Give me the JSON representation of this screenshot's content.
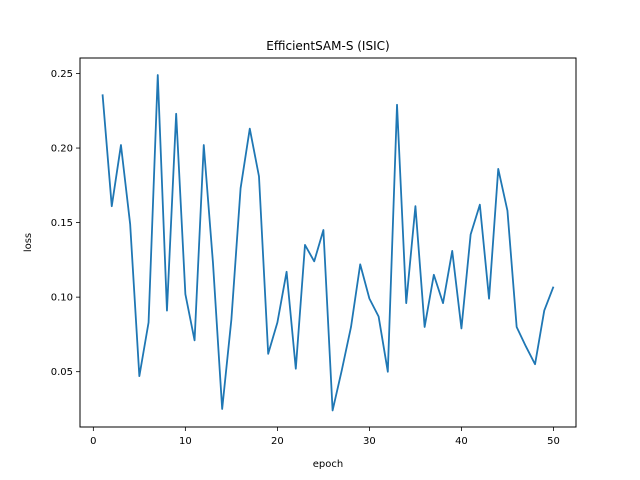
{
  "chart_data": {
    "type": "line",
    "title": "EfficientSAM-S (ISIC)",
    "xlabel": "epoch",
    "ylabel": "loss",
    "xlim": [
      -1.45,
      52.45
    ],
    "ylim": [
      0.0129,
      0.2604
    ],
    "xticks": [
      0,
      10,
      20,
      30,
      40,
      50
    ],
    "yticks": [
      0.05,
      0.1,
      0.15,
      0.2,
      0.25
    ],
    "ytick_labels": [
      "0.05",
      "0.10",
      "0.15",
      "0.20",
      "0.25"
    ],
    "grid": false,
    "line_color": "#1f77b4",
    "series": [
      {
        "x": [
          1,
          2,
          3,
          4,
          5,
          6,
          7,
          8,
          9,
          10,
          11,
          12,
          13,
          14,
          15,
          16,
          17,
          18,
          19,
          20,
          21,
          22,
          23,
          24,
          25,
          26,
          27,
          28,
          29,
          30,
          31,
          32,
          33,
          34,
          35,
          36,
          37,
          38,
          39,
          40,
          41,
          42,
          43,
          44,
          45,
          46,
          47,
          48,
          49,
          50
        ],
        "values": [
          0.236,
          0.161,
          0.202,
          0.149,
          0.047,
          0.083,
          0.249,
          0.091,
          0.223,
          0.102,
          0.071,
          0.202,
          0.123,
          0.025,
          0.085,
          0.173,
          0.213,
          0.181,
          0.062,
          0.083,
          0.117,
          0.052,
          0.135,
          0.124,
          0.145,
          0.024,
          0.051,
          0.08,
          0.122,
          0.099,
          0.087,
          0.05,
          0.229,
          0.096,
          0.161,
          0.08,
          0.115,
          0.096,
          0.131,
          0.079,
          0.142,
          0.162,
          0.099,
          0.186,
          0.158,
          0.08,
          0.067,
          0.055,
          0.091,
          0.107
        ]
      }
    ]
  }
}
